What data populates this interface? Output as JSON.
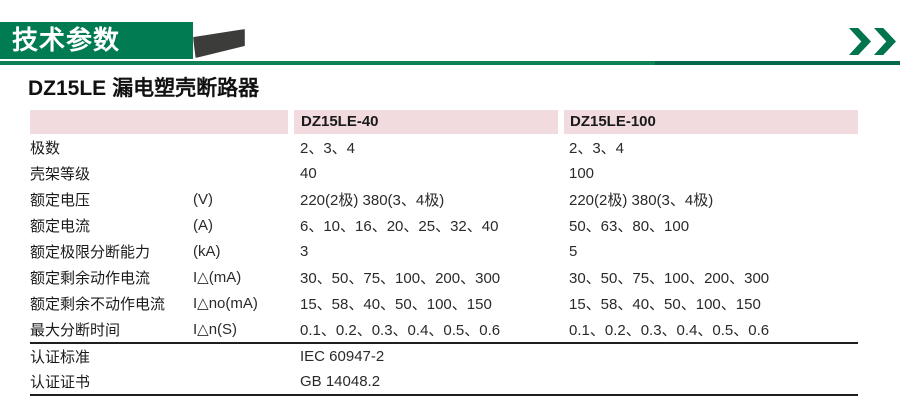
{
  "banner": {
    "section_title": "技术参数",
    "chevrons_icon": "double-right-chevron"
  },
  "product": {
    "model": "DZ15LE",
    "name": "漏电塑壳断路器"
  },
  "colors": {
    "banner_green": "#007B52",
    "rule_green_left": "#0E8256",
    "rule_green_right": "#04684A",
    "header_pink": "#F1DBDE",
    "triangle_dark": "#3C3C3A",
    "chevron_green": "#00744E"
  },
  "table": {
    "columns": [
      "DZ15LE-40",
      "DZ15LE-100"
    ],
    "rows": [
      {
        "label": "极数",
        "unit": "",
        "dz15le_40": "2、3、4",
        "dz15le_100": "2、3、4"
      },
      {
        "label": "壳架等级",
        "unit": "",
        "dz15le_40": "40",
        "dz15le_100": "100"
      },
      {
        "label": "额定电压",
        "unit": "(V)",
        "dz15le_40": "220(2极) 380(3、4极)",
        "dz15le_100": "220(2极) 380(3、4极)"
      },
      {
        "label": "额定电流",
        "unit": "(A)",
        "dz15le_40": "6、10、16、20、25、32、40",
        "dz15le_100": "50、63、80、100"
      },
      {
        "label": "额定极限分断能力",
        "unit": "(kA)",
        "dz15le_40": "3",
        "dz15le_100": "5"
      },
      {
        "label": "额定剩余动作电流",
        "unit": "I△(mA)",
        "dz15le_40": "30、50、75、100、200、300",
        "dz15le_100": "30、50、75、100、200、300"
      },
      {
        "label": "额定剩余不动作电流",
        "unit": "I△no(mA)",
        "dz15le_40": "15、58、40、50、100、150",
        "dz15le_100": "15、58、40、50、100、150"
      },
      {
        "label": "最大分断时间",
        "unit": "I△n(S)",
        "dz15le_40": "0.1、0.2、0.3、0.4、0.5、0.6",
        "dz15le_100": "0.1、0.2、0.3、0.4、0.5、0.6"
      }
    ],
    "footer_rows": [
      {
        "label": "认证标准",
        "value": "IEC 60947-2"
      },
      {
        "label": "认证证书",
        "value": "GB 14048.2"
      }
    ]
  }
}
